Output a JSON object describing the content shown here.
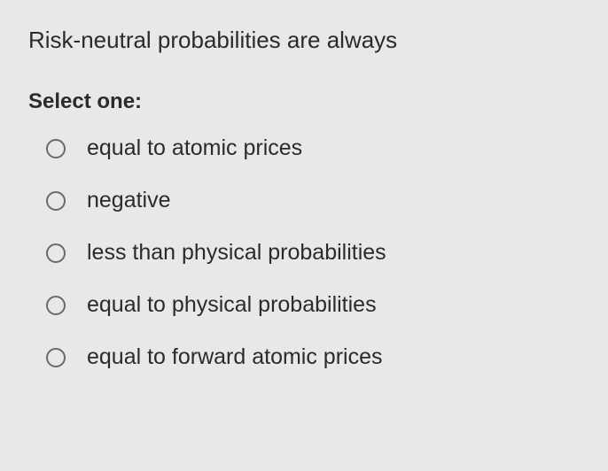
{
  "question": {
    "text": "Risk-neutral probabilities are always",
    "prompt": "Select one:",
    "options": [
      {
        "label": "equal to atomic prices",
        "selected": false
      },
      {
        "label": "negative",
        "selected": false
      },
      {
        "label": "less than physical probabilities",
        "selected": false
      },
      {
        "label": "equal to physical probabilities",
        "selected": false
      },
      {
        "label": "equal to forward atomic prices",
        "selected": false
      }
    ]
  },
  "styling": {
    "background_color": "#e8e9e6",
    "text_color": "#2b2b2b",
    "radio_border_color": "#6a6a6a",
    "question_fontsize": 26,
    "prompt_fontsize": 24,
    "option_fontsize": 25
  }
}
